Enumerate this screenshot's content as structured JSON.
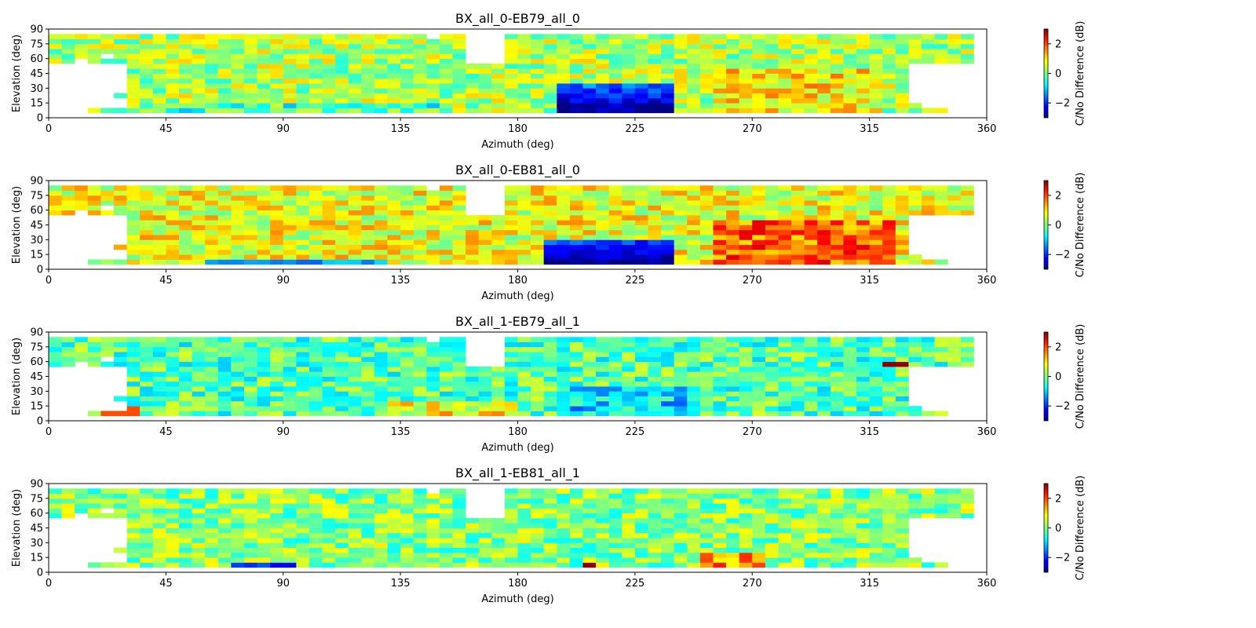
{
  "chart_data": [
    {
      "type": "heatmap",
      "title": "BX_all_0-EB79_all_0",
      "xlabel": "Azimuth (deg)",
      "ylabel": "Elevation (deg)",
      "xlim": [
        0,
        360
      ],
      "ylim": [
        0,
        90
      ],
      "xticks": [
        0,
        45,
        90,
        135,
        180,
        225,
        270,
        315,
        360
      ],
      "yticks": [
        0,
        15,
        30,
        45,
        60,
        75,
        90
      ],
      "colorbar": {
        "label": "C/No Difference (dB)",
        "range": [
          -3,
          3
        ],
        "ticks": [
          -2,
          0,
          2
        ],
        "tick_labels": [
          "−2",
          "0",
          "2"
        ]
      },
      "bin_size": {
        "azimuth": 5,
        "elevation": 5
      },
      "variant": 0
    },
    {
      "type": "heatmap",
      "title": "BX_all_0-EB81_all_0",
      "xlabel": "Azimuth (deg)",
      "ylabel": "Elevation (deg)",
      "xlim": [
        0,
        360
      ],
      "ylim": [
        0,
        90
      ],
      "xticks": [
        0,
        45,
        90,
        135,
        180,
        225,
        270,
        315,
        360
      ],
      "yticks": [
        0,
        15,
        30,
        45,
        60,
        75,
        90
      ],
      "colorbar": {
        "label": "C/No Difference (dB)",
        "range": [
          -3,
          3
        ],
        "ticks": [
          -2,
          0,
          2
        ],
        "tick_labels": [
          "−2",
          "0",
          "2"
        ]
      },
      "bin_size": {
        "azimuth": 5,
        "elevation": 5
      },
      "variant": 1
    },
    {
      "type": "heatmap",
      "title": "BX_all_1-EB79_all_1",
      "xlabel": "Azimuth (deg)",
      "ylabel": "Elevation (deg)",
      "xlim": [
        0,
        360
      ],
      "ylim": [
        0,
        90
      ],
      "xticks": [
        0,
        45,
        90,
        135,
        180,
        225,
        270,
        315,
        360
      ],
      "yticks": [
        0,
        15,
        30,
        45,
        60,
        75,
        90
      ],
      "colorbar": {
        "label": "C/No Difference (dB)",
        "range": [
          -3,
          3
        ],
        "ticks": [
          -2,
          0,
          2
        ],
        "tick_labels": [
          "−2",
          "0",
          "2"
        ]
      },
      "bin_size": {
        "azimuth": 5,
        "elevation": 5
      },
      "variant": 2
    },
    {
      "type": "heatmap",
      "title": "BX_all_1-EB81_all_1",
      "xlabel": "Azimuth (deg)",
      "ylabel": "Elevation (deg)",
      "xlim": [
        0,
        360
      ],
      "ylim": [
        0,
        90
      ],
      "xticks": [
        0,
        45,
        90,
        135,
        180,
        225,
        270,
        315,
        360
      ],
      "yticks": [
        0,
        15,
        30,
        45,
        60,
        75,
        90
      ],
      "colorbar": {
        "label": "C/No Difference (dB)",
        "range": [
          -3,
          3
        ],
        "ticks": [
          -2,
          0,
          2
        ],
        "tick_labels": [
          "−2",
          "0",
          "2"
        ]
      },
      "bin_size": {
        "azimuth": 5,
        "elevation": 5
      },
      "variant": 3
    }
  ]
}
